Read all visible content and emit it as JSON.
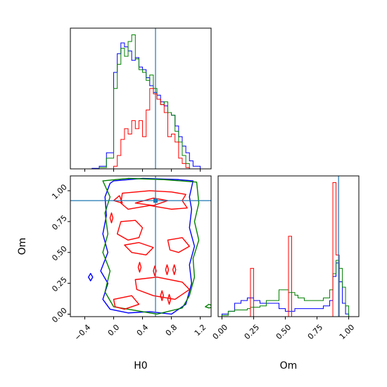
{
  "chart_data": {
    "type": "corner",
    "params": [
      "H0",
      "Om"
    ],
    "truth": {
      "H0": 0.58,
      "Om": 0.92
    },
    "colors": {
      "blue": "#0000ff",
      "green": "#008000",
      "red": "#ff0000",
      "truth": "#1f77b4"
    },
    "panels": {
      "hist_H0": {
        "xlim": [
          -0.6,
          1.35
        ],
        "ticks": [
          -0.4,
          0.0,
          0.4,
          0.8,
          1.2
        ],
        "tick_labels": [
          "",
          "",
          "",
          "",
          ""
        ],
        "edges": [
          -0.4,
          -0.3,
          -0.2,
          -0.1,
          0.0,
          0.05,
          0.1,
          0.15,
          0.2,
          0.25,
          0.3,
          0.35,
          0.4,
          0.45,
          0.5,
          0.55,
          0.6,
          0.65,
          0.7,
          0.75,
          0.8,
          0.85,
          0.9,
          0.95,
          1.0,
          1.05,
          1.1,
          1.2,
          1.3
        ],
        "series": [
          {
            "name": "blue",
            "values": [
              0,
              0.004,
              0.02,
              0.12,
              0.72,
              0.86,
              0.94,
              0.91,
              0.88,
              0.81,
              0.83,
              0.76,
              0.74,
              0.68,
              0.62,
              0.57,
              0.55,
              0.5,
              0.47,
              0.42,
              0.4,
              0.32,
              0.24,
              0.17,
              0.12,
              0.06,
              0.02,
              0
            ]
          },
          {
            "name": "green",
            "values": [
              0,
              0,
              0.01,
              0.08,
              0.6,
              0.78,
              0.9,
              0.84,
              0.95,
              1.0,
              0.82,
              0.74,
              0.72,
              0.66,
              0.7,
              0.6,
              0.52,
              0.48,
              0.5,
              0.42,
              0.4,
              0.28,
              0.2,
              0.1,
              0.04,
              0,
              0,
              0
            ]
          },
          {
            "name": "red",
            "values": [
              0,
              0,
              0,
              0,
              0.02,
              0.1,
              0.22,
              0.3,
              0.26,
              0.36,
              0.3,
              0.36,
              0.24,
              0.44,
              0.6,
              0.56,
              0.52,
              0.48,
              0.42,
              0.24,
              0.26,
              0.2,
              0.08,
              0.04,
              0.01,
              0,
              0,
              0
            ]
          }
        ]
      },
      "hist_Om": {
        "xlim": [
          -0.03,
          1.08
        ],
        "ticks": [
          0.0,
          0.25,
          0.5,
          0.75,
          1.0
        ],
        "tick_labels": [
          "0.00",
          "0.25",
          "0.50",
          "0.75",
          "1.00"
        ],
        "edges": [
          0.0,
          0.05,
          0.1,
          0.15,
          0.2,
          0.225,
          0.25,
          0.3,
          0.35,
          0.4,
          0.45,
          0.5,
          0.525,
          0.55,
          0.575,
          0.6,
          0.65,
          0.7,
          0.75,
          0.8,
          0.85,
          0.875,
          0.9,
          0.925,
          0.95,
          0.975,
          1.0,
          1.05
        ],
        "series": [
          {
            "name": "blue",
            "values": [
              0.02,
              0.04,
              0.1,
              0.12,
              0.14,
              0.14,
              0.12,
              0.1,
              0.1,
              0.1,
              0.06,
              0.04,
              0.04,
              0.04,
              0.06,
              0.06,
              0.06,
              0.06,
              0.06,
              0.08,
              0.12,
              0.3,
              0.4,
              0.26,
              0.1,
              0.02,
              0
            ]
          },
          {
            "name": "green",
            "values": [
              0.01,
              0.04,
              0.05,
              0.05,
              0.06,
              0.07,
              0.07,
              0.08,
              0.12,
              0.12,
              0.2,
              0.2,
              0.18,
              0.18,
              0.16,
              0.14,
              0.12,
              0.12,
              0.12,
              0.14,
              0.2,
              0.32,
              0.42,
              0.36,
              0.22,
              0.08,
              0
            ]
          },
          {
            "name": "red",
            "values": [
              0,
              0,
              0,
              0,
              0,
              0.36,
              0,
              0,
              0,
              0,
              0,
              0,
              0.6,
              0,
              0,
              0,
              0,
              0,
              0,
              0,
              0,
              1.0,
              0.46,
              0,
              0,
              0,
              0
            ]
          }
        ]
      },
      "joint": {
        "xlim": [
          -0.6,
          1.35
        ],
        "ylim": [
          -0.02,
          1.12
        ],
        "x_ticks": [
          -0.4,
          0.0,
          0.4,
          0.8,
          1.2
        ],
        "x_tick_labels": [
          "−0.4",
          "0.0",
          "0.4",
          "0.8",
          "1.2"
        ],
        "y_ticks": [
          0.0,
          0.25,
          0.5,
          0.75,
          1.0
        ],
        "y_tick_labels": [
          "0.00",
          "0.25",
          "0.50",
          "0.75",
          "1.00"
        ],
        "contours": [
          {
            "color": "blue",
            "points": [
              [
                0.0,
                1.08
              ],
              [
                0.4,
                1.1
              ],
              [
                0.9,
                1.09
              ],
              [
                1.1,
                1.08
              ],
              [
                1.05,
                0.95
              ],
              [
                1.08,
                0.85
              ],
              [
                1.05,
                0.7
              ],
              [
                1.12,
                0.55
              ],
              [
                1.05,
                0.4
              ],
              [
                1.08,
                0.25
              ],
              [
                1.0,
                0.08
              ],
              [
                0.8,
                0.0
              ],
              [
                0.5,
                0.02
              ],
              [
                0.2,
                0.01
              ],
              [
                -0.05,
                0.04
              ],
              [
                -0.15,
                0.12
              ],
              [
                -0.08,
                0.25
              ],
              [
                -0.18,
                0.35
              ],
              [
                -0.08,
                0.5
              ],
              [
                -0.15,
                0.65
              ],
              [
                -0.1,
                0.8
              ],
              [
                -0.12,
                0.95
              ],
              [
                -0.05,
                1.06
              ]
            ]
          },
          {
            "color": "blue",
            "points": [
              [
                -0.35,
                0.3
              ],
              [
                -0.32,
                0.33
              ],
              [
                -0.29,
                0.3
              ],
              [
                -0.32,
                0.27
              ]
            ]
          },
          {
            "color": "green",
            "points": [
              [
                -0.15,
                1.08
              ],
              [
                0.2,
                1.1
              ],
              [
                0.7,
                1.09
              ],
              [
                1.15,
                1.07
              ],
              [
                1.18,
                0.9
              ],
              [
                1.12,
                0.75
              ],
              [
                1.18,
                0.6
              ],
              [
                1.1,
                0.45
              ],
              [
                1.12,
                0.3
              ],
              [
                1.05,
                0.15
              ],
              [
                0.95,
                0.05
              ],
              [
                0.6,
                0.0
              ],
              [
                0.3,
                0.03
              ],
              [
                0.0,
                0.06
              ],
              [
                -0.12,
                0.18
              ],
              [
                -0.05,
                0.35
              ],
              [
                -0.15,
                0.5
              ],
              [
                -0.08,
                0.65
              ],
              [
                -0.12,
                0.82
              ],
              [
                -0.05,
                0.95
              ]
            ]
          },
          {
            "color": "green",
            "points": [
              [
                1.27,
                0.06
              ],
              [
                1.32,
                0.05
              ],
              [
                1.4,
                0.06
              ],
              [
                1.32,
                0.08
              ]
            ]
          },
          {
            "color": "red",
            "points": [
              [
                0.12,
                0.98
              ],
              [
                0.5,
                1.0
              ],
              [
                0.8,
                0.99
              ],
              [
                1.0,
                0.97
              ],
              [
                0.95,
                0.92
              ],
              [
                1.02,
                0.86
              ],
              [
                0.8,
                0.85
              ],
              [
                0.5,
                0.88
              ],
              [
                0.2,
                0.85
              ],
              [
                0.1,
                0.9
              ]
            ]
          },
          {
            "color": "red",
            "points": [
              [
                0.3,
                0.9
              ],
              [
                0.55,
                0.94
              ],
              [
                0.75,
                0.92
              ],
              [
                0.55,
                0.88
              ]
            ]
          },
          {
            "color": "red",
            "points": [
              [
                0.0,
                0.92
              ],
              [
                0.08,
                0.96
              ],
              [
                0.12,
                0.9
              ]
            ]
          },
          {
            "color": "red",
            "points": [
              [
                0.1,
                0.75
              ],
              [
                0.3,
                0.76
              ],
              [
                0.4,
                0.7
              ],
              [
                0.35,
                0.62
              ],
              [
                0.2,
                0.6
              ],
              [
                0.05,
                0.65
              ]
            ]
          },
          {
            "color": "red",
            "points": [
              [
                0.15,
                0.56
              ],
              [
                0.35,
                0.58
              ],
              [
                0.55,
                0.54
              ],
              [
                0.45,
                0.48
              ],
              [
                0.25,
                0.5
              ]
            ]
          },
          {
            "color": "red",
            "points": [
              [
                0.75,
                0.6
              ],
              [
                0.95,
                0.62
              ],
              [
                1.05,
                0.55
              ],
              [
                0.9,
                0.5
              ],
              [
                0.78,
                0.52
              ]
            ]
          },
          {
            "color": "red",
            "points": [
              [
                0.3,
                0.28
              ],
              [
                0.6,
                0.3
              ],
              [
                0.95,
                0.26
              ],
              [
                1.05,
                0.2
              ],
              [
                0.85,
                0.12
              ],
              [
                0.55,
                0.15
              ],
              [
                0.32,
                0.2
              ]
            ]
          },
          {
            "color": "red",
            "points": [
              [
                0.0,
                0.12
              ],
              [
                0.25,
                0.15
              ],
              [
                0.35,
                0.08
              ],
              [
                0.15,
                0.04
              ],
              [
                0.02,
                0.06
              ]
            ]
          },
          {
            "color": "red",
            "points": [
              [
                0.34,
                0.38
              ],
              [
                0.36,
                0.42
              ],
              [
                0.38,
                0.38
              ],
              [
                0.36,
                0.34
              ]
            ]
          },
          {
            "color": "red",
            "points": [
              [
                0.55,
                0.35
              ],
              [
                0.57,
                0.39
              ],
              [
                0.59,
                0.35
              ],
              [
                0.57,
                0.31
              ]
            ]
          },
          {
            "color": "red",
            "points": [
              [
                0.72,
                0.36
              ],
              [
                0.74,
                0.4
              ],
              [
                0.76,
                0.36
              ],
              [
                0.74,
                0.32
              ]
            ]
          },
          {
            "color": "red",
            "points": [
              [
                0.82,
                0.36
              ],
              [
                0.84,
                0.4
              ],
              [
                0.86,
                0.36
              ],
              [
                0.84,
                0.32
              ]
            ]
          },
          {
            "color": "red",
            "points": [
              [
                0.65,
                0.15
              ],
              [
                0.67,
                0.19
              ],
              [
                0.69,
                0.15
              ],
              [
                0.67,
                0.11
              ]
            ]
          },
          {
            "color": "red",
            "points": [
              [
                0.75,
                0.12
              ],
              [
                0.77,
                0.16
              ],
              [
                0.79,
                0.12
              ],
              [
                0.77,
                0.08
              ]
            ]
          },
          {
            "color": "red",
            "points": [
              [
                -0.05,
                0.78
              ],
              [
                -0.03,
                0.82
              ],
              [
                -0.01,
                0.78
              ],
              [
                -0.03,
                0.74
              ]
            ]
          }
        ]
      }
    },
    "xlabels": {
      "joint": "H0",
      "hist_Om": "Om"
    },
    "ylabels": {
      "joint": "Om"
    }
  }
}
